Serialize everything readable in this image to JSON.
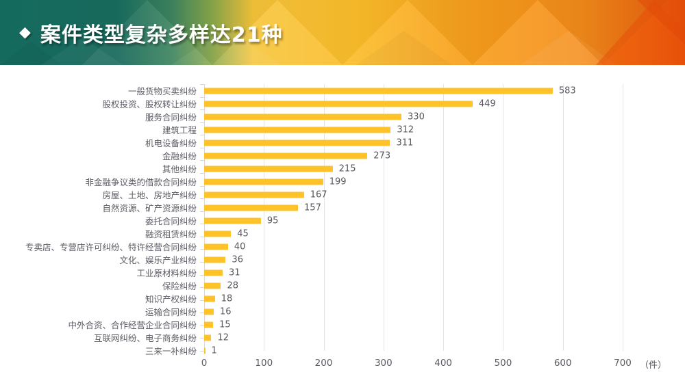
{
  "header": {
    "diamond_icon": "diamond-bullet",
    "diamond_glyph": "◆",
    "title": "案件类型复杂多样达21种"
  },
  "colors": {
    "banner_teal": "#17695c",
    "banner_green": "#4a8a60",
    "banner_yellow": "#fbc334",
    "banner_orange": "#f89d1d",
    "banner_deep_orange": "#e8520c",
    "bar_fill": "#fdc328",
    "text_gray": "#5b5b64",
    "gridline": "#e4e4e8"
  },
  "chart_data": {
    "type": "bar",
    "orientation": "horizontal",
    "title": "案件类型复杂多样达21种",
    "categories": [
      "一般货物买卖纠纷",
      "股权投资、股权转让纠纷",
      "服务合同纠纷",
      "建筑工程",
      "机电设备纠纷",
      "金融纠纷",
      "其他纠纷",
      "非金融争议类的借款合同纠纷",
      "房屋、土地、房地产纠纷",
      "自然资源、矿产资源纠纷",
      "委托合同纠纷",
      "融资租赁纠纷",
      "专卖店、专营店许可纠纷、特许经营合同纠纷",
      "文化、娱乐产业纠纷",
      "工业原材料纠纷",
      "保险纠纷",
      "知识产权纠纷",
      "运输合同纠纷",
      "中外合资、合作经营企业合同纠纷",
      "互联网纠纷、电子商务纠纷",
      "三来一补纠纷"
    ],
    "values": [
      583,
      449,
      330,
      312,
      311,
      273,
      215,
      199,
      167,
      157,
      95,
      45,
      40,
      36,
      31,
      28,
      18,
      16,
      15,
      12,
      1
    ],
    "x_ticks": [
      0,
      100,
      200,
      300,
      400,
      500,
      600,
      700
    ],
    "xlim": [
      0,
      700
    ],
    "xlabel": "",
    "ylabel": "",
    "unit_label": "（件）",
    "grid": true,
    "legend": false
  }
}
